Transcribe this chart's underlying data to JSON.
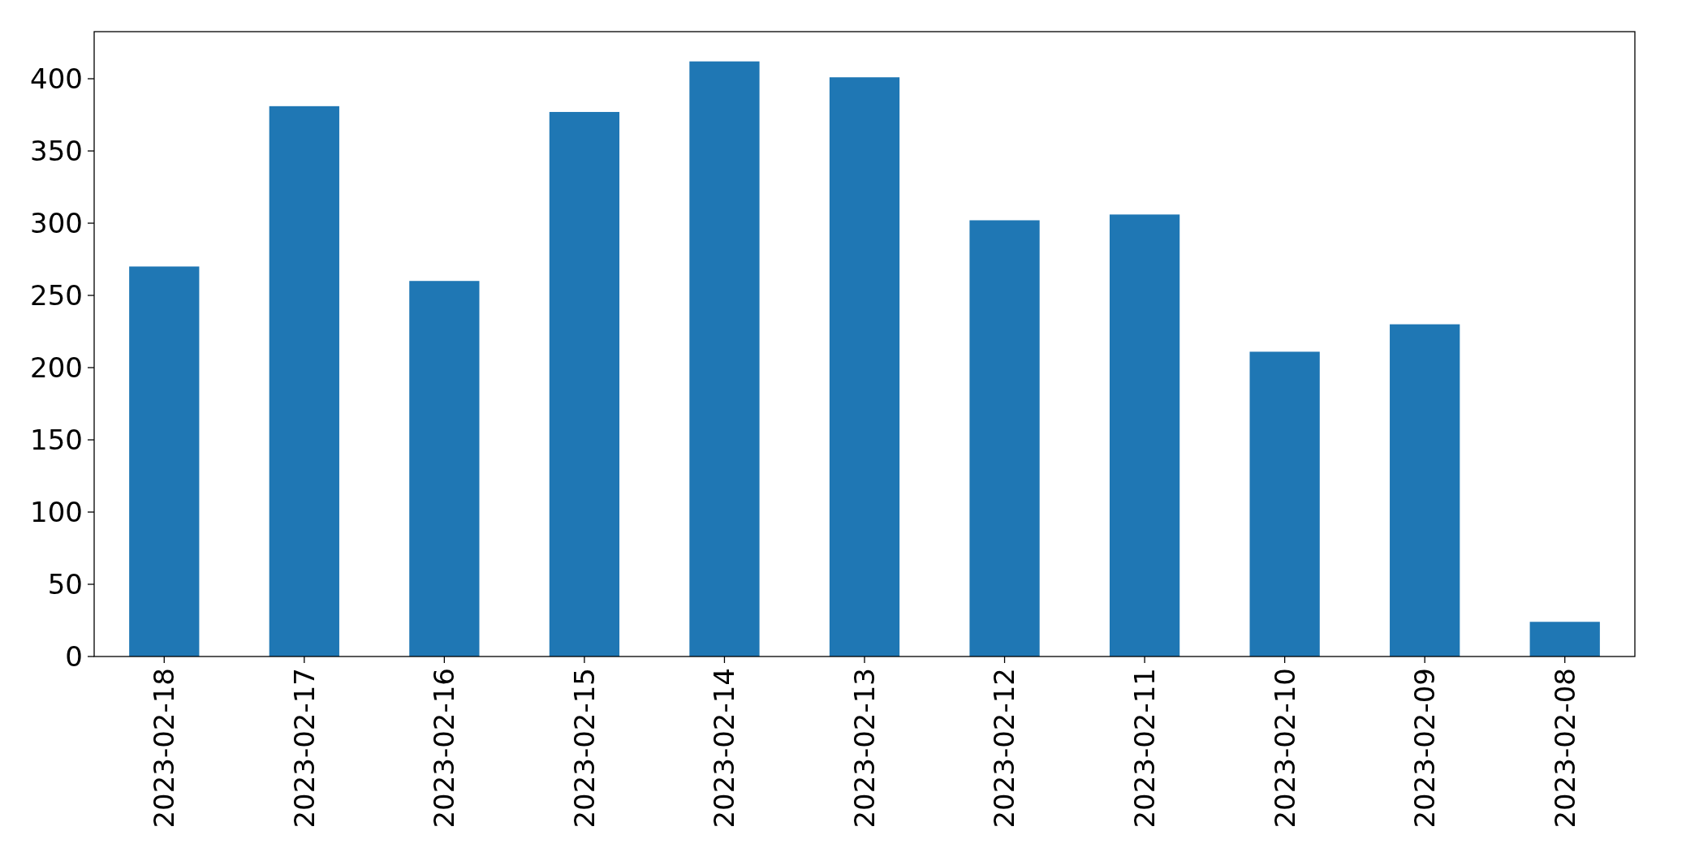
{
  "chart_data": {
    "type": "bar",
    "categories": [
      "2023-02-18",
      "2023-02-17",
      "2023-02-16",
      "2023-02-15",
      "2023-02-14",
      "2023-02-13",
      "2023-02-12",
      "2023-02-11",
      "2023-02-10",
      "2023-02-09",
      "2023-02-08"
    ],
    "values": [
      270,
      381,
      260,
      377,
      412,
      401,
      302,
      306,
      211,
      230,
      24
    ],
    "color": "#1f77b4",
    "ylim": [
      0,
      432.6
    ],
    "yticks": [
      0,
      50,
      100,
      150,
      200,
      250,
      300,
      350,
      400
    ],
    "grid": false
  }
}
